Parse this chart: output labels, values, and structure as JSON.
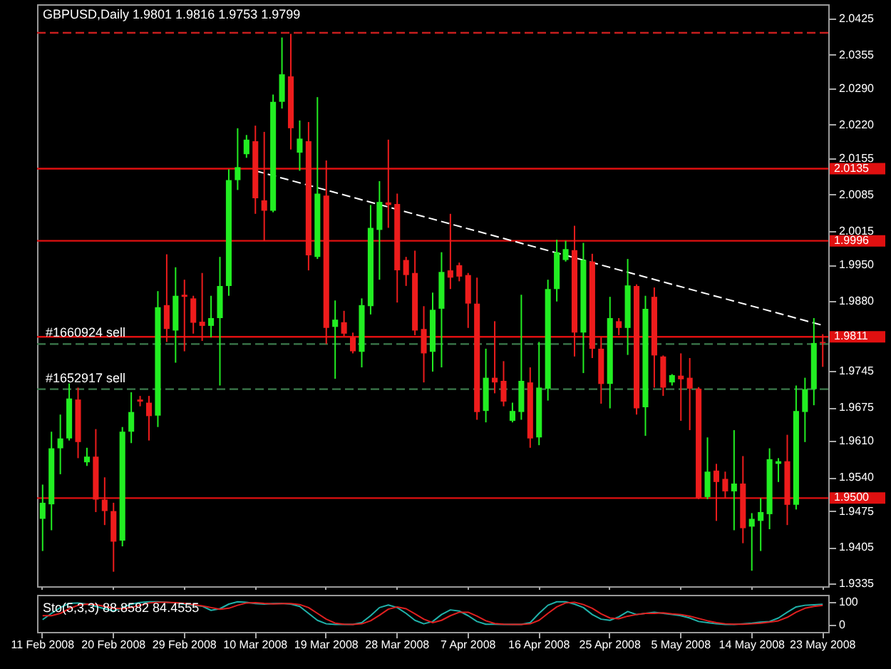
{
  "chart_data": [
    {
      "type": "candlestick",
      "title": "GBPUSD,Daily 1.9801 1.9816 1.9753 1.9799",
      "tick_labels": "y",
      "categories": [
        "11 Feb 2008",
        null,
        null,
        null,
        null,
        null,
        null,
        null,
        "20 Feb 2008",
        null,
        null,
        null,
        null,
        null,
        null,
        null,
        "29 Feb 2008",
        null,
        null,
        null,
        null,
        null,
        null,
        null,
        "10 Mar 2008",
        null,
        null,
        null,
        null,
        null,
        null,
        null,
        "19 Mar 2008",
        null,
        null,
        null,
        null,
        null,
        null,
        null,
        "28 Mar 2008",
        null,
        null,
        null,
        null,
        null,
        null,
        null,
        "7 Apr 2008",
        null,
        null,
        null,
        null,
        null,
        null,
        null,
        "16 Apr 2008",
        null,
        null,
        null,
        null,
        null,
        null,
        null,
        "25 Apr 2008",
        null,
        null,
        null,
        null,
        null,
        null,
        null,
        "5 May 2008",
        null,
        null,
        null,
        null,
        null,
        null,
        null,
        "14 May 2008",
        null,
        null,
        null,
        null,
        null,
        null,
        null,
        "23 May 2008"
      ],
      "ohlc": [
        [
          1.946,
          1.9526,
          1.9398,
          1.9491
        ],
        [
          1.9488,
          1.9628,
          1.9438,
          1.9596
        ],
        [
          1.9596,
          1.9661,
          1.9546,
          1.9615
        ],
        [
          1.9615,
          1.9721,
          1.9611,
          1.9692
        ],
        [
          1.969,
          1.9713,
          1.9577,
          1.9608
        ],
        [
          1.9569,
          1.9597,
          1.9562,
          1.958
        ],
        [
          1.958,
          1.9633,
          1.9473,
          1.9497
        ],
        [
          1.9497,
          1.954,
          1.9448,
          1.9475
        ],
        [
          1.9475,
          1.9491,
          1.9358,
          1.9416
        ],
        [
          1.9418,
          1.9637,
          1.9407,
          1.9628
        ],
        [
          1.9628,
          1.9704,
          1.9606,
          1.9666
        ],
        [
          1.969,
          1.9697,
          1.9677,
          1.9686
        ],
        [
          1.9684,
          1.9697,
          1.9611,
          1.9658
        ],
        [
          1.9659,
          1.9899,
          1.9637,
          1.9868
        ],
        [
          1.9872,
          1.997,
          1.9801,
          1.9826
        ],
        [
          1.9823,
          1.9945,
          1.9761,
          1.989
        ],
        [
          1.9892,
          1.9921,
          1.9783,
          1.9888
        ],
        [
          1.9885,
          1.989,
          1.9817,
          1.9838
        ],
        [
          1.984,
          1.9934,
          1.9803,
          1.9832
        ],
        [
          1.9832,
          1.989,
          1.981,
          1.9847
        ],
        [
          1.9847,
          1.9965,
          1.9717,
          1.9909
        ],
        [
          1.9909,
          2.0134,
          1.989,
          2.0113
        ],
        [
          2.0113,
          2.0213,
          2.0094,
          2.0138
        ],
        [
          2.0163,
          2.02,
          2.0156,
          2.0191
        ],
        [
          2.0188,
          2.0218,
          2.0048,
          2.0078
        ],
        [
          2.0074,
          2.0206,
          1.9996,
          2.0054
        ],
        [
          2.0054,
          2.0278,
          2.0051,
          2.0264
        ],
        [
          2.0264,
          2.0388,
          2.0251,
          2.0317
        ],
        [
          2.0313,
          2.0395,
          2.0172,
          2.0213
        ],
        [
          2.0166,
          2.0228,
          2.0131,
          2.0193
        ],
        [
          2.0188,
          2.0225,
          1.9939,
          1.9968
        ],
        [
          1.9965,
          2.0273,
          1.9961,
          2.0087
        ],
        [
          2.0083,
          2.0151,
          1.9797,
          1.9828
        ],
        [
          1.983,
          1.9881,
          1.973,
          1.9844
        ],
        [
          1.9839,
          1.9861,
          1.9812,
          1.9817
        ],
        [
          1.981,
          1.9819,
          1.9779,
          1.9783
        ],
        [
          1.9782,
          1.9885,
          1.9752,
          1.9872
        ],
        [
          1.987,
          2.0065,
          1.9854,
          2.0021
        ],
        [
          2.0017,
          2.0111,
          1.9921,
          2.0071
        ],
        [
          2.007,
          2.0191,
          2.0021,
          2.0065
        ],
        [
          2.0067,
          2.0087,
          1.9877,
          1.9939
        ],
        [
          1.9959,
          1.9965,
          1.9909,
          1.993
        ],
        [
          1.9934,
          1.9977,
          1.9814,
          1.9823
        ],
        [
          1.9826,
          1.987,
          1.9723,
          1.9779
        ],
        [
          1.9782,
          1.9896,
          1.9744,
          1.9863
        ],
        [
          1.9865,
          1.9974,
          1.9752,
          1.9936
        ],
        [
          1.9939,
          2.0048,
          1.9903,
          1.9925
        ],
        [
          1.9949,
          1.9954,
          1.9918,
          1.9927
        ],
        [
          1.993,
          1.9934,
          1.9828,
          1.9875
        ],
        [
          1.9875,
          1.9925,
          1.9651,
          1.9666
        ],
        [
          1.9668,
          1.9788,
          1.9646,
          1.9732
        ],
        [
          1.9732,
          1.9841,
          1.9702,
          1.9723
        ],
        [
          1.9726,
          1.9764,
          1.9677,
          1.9686
        ],
        [
          1.9649,
          1.9684,
          1.9646,
          1.9668
        ],
        [
          1.9666,
          1.9892,
          1.9651,
          1.9726
        ],
        [
          1.9723,
          1.9752,
          1.9597,
          1.9615
        ],
        [
          1.9617,
          1.9801,
          1.9602,
          1.9713
        ],
        [
          1.9711,
          1.9921,
          1.9688,
          1.9903
        ],
        [
          1.9903,
          1.9998,
          1.9879,
          1.9974
        ],
        [
          1.9959,
          1.9996,
          1.9956,
          1.998
        ],
        [
          1.9978,
          2.0025,
          1.9773,
          1.9819
        ],
        [
          1.9819,
          1.9992,
          1.9741,
          1.9959
        ],
        [
          1.9956,
          1.9971,
          1.977,
          1.9788
        ],
        [
          1.9788,
          1.981,
          1.9682,
          1.972
        ],
        [
          1.972,
          1.9888,
          1.9673,
          1.9847
        ],
        [
          1.9841,
          1.9847,
          1.9814,
          1.9828
        ],
        [
          1.9828,
          1.9961,
          1.9776,
          1.991
        ],
        [
          1.9909,
          1.9912,
          1.9661,
          1.9673
        ],
        [
          1.9675,
          1.989,
          1.962,
          1.9865
        ],
        [
          1.9888,
          1.9906,
          1.9713,
          1.9775
        ],
        [
          1.9773,
          1.9775,
          1.9697,
          1.9713
        ],
        [
          1.9723,
          1.9739,
          1.9717,
          1.9737
        ],
        [
          1.9736,
          1.9779,
          1.9649,
          1.9729
        ],
        [
          1.9732,
          1.977,
          1.9631,
          1.9711
        ],
        [
          1.9711,
          1.9714,
          1.9498,
          1.95
        ],
        [
          1.9502,
          1.9617,
          1.9498,
          1.9551
        ],
        [
          1.9553,
          1.9566,
          1.9456,
          1.9531
        ],
        [
          1.9537,
          1.9551,
          1.95,
          1.9513
        ],
        [
          1.9513,
          1.9631,
          1.9438,
          1.9528
        ],
        [
          1.9528,
          1.9581,
          1.9413,
          1.9442
        ],
        [
          1.9445,
          1.9471,
          1.936,
          1.946
        ],
        [
          1.9456,
          1.95,
          1.9398,
          1.9473
        ],
        [
          1.9469,
          1.9596,
          1.944,
          1.9575
        ],
        [
          1.9566,
          1.9577,
          1.9531,
          1.9571
        ],
        [
          1.9571,
          1.9622,
          1.9448,
          1.9487
        ],
        [
          1.9487,
          1.9717,
          1.9478,
          1.9668
        ],
        [
          1.9666,
          1.9732,
          1.9608,
          1.971
        ],
        [
          1.971,
          1.9847,
          1.9679,
          1.9799
        ],
        [
          1.9801,
          1.9816,
          1.9753,
          1.9799
        ]
      ],
      "colors": [
        "#22ee22",
        "#22ee22",
        "#22ee22",
        "#22ee22",
        "#ee1c1c",
        "#22ee22",
        "#ee1c1c",
        "#ee1c1c",
        "#ee1c1c",
        "#22ee22",
        "#22ee22",
        "#ee1c1c",
        "#ee1c1c",
        "#22ee22",
        "#ee1c1c",
        "#22ee22",
        "#ee1c1c",
        "#ee1c1c",
        "#ee1c1c",
        "#22ee22",
        "#22ee22",
        "#22ee22",
        "#22ee22",
        "#22ee22",
        "#ee1c1c",
        "#ee1c1c",
        "#22ee22",
        "#22ee22",
        "#ee1c1c",
        "#22ee22",
        "#ee1c1c",
        "#22ee22",
        "#ee1c1c",
        "#22ee22",
        "#ee1c1c",
        "#ee1c1c",
        "#22ee22",
        "#22ee22",
        "#22ee22",
        "#ee1c1c",
        "#ee1c1c",
        "#ee1c1c",
        "#ee1c1c",
        "#ee1c1c",
        "#22ee22",
        "#22ee22",
        "#ee1c1c",
        "#ee1c1c",
        "#ee1c1c",
        "#ee1c1c",
        "#22ee22",
        "#ee1c1c",
        "#ee1c1c",
        "#22ee22",
        "#22ee22",
        "#ee1c1c",
        "#22ee22",
        "#22ee22",
        "#22ee22",
        "#22ee22",
        "#ee1c1c",
        "#22ee22",
        "#ee1c1c",
        "#ee1c1c",
        "#22ee22",
        "#ee1c1c",
        "#22ee22",
        "#ee1c1c",
        "#22ee22",
        "#ee1c1c",
        "#ee1c1c",
        "#22ee22",
        "#ee1c1c",
        "#ee1c1c",
        "#ee1c1c",
        "#22ee22",
        "#ee1c1c",
        "#ee1c1c",
        "#22ee22",
        "#ee1c1c",
        "#22ee22",
        "#22ee22",
        "#22ee22",
        "#22ee22",
        "#ee1c1c",
        "#22ee22",
        "#22ee22",
        "#22ee22",
        "#ee1c1c"
      ],
      "series": [
        {
          "type": "line",
          "color": "#ffffff",
          "line_style": "dashed",
          "x": [
            "10 Mar 2008",
            "23 May 2008"
          ],
          "values": [
            2.0131,
            1.9833
          ]
        }
      ],
      "ylim": [
        1.933,
        2.0452
      ],
      "yticks": [
        1.9335,
        1.9405,
        1.9475,
        {
          "value": 1.954,
          "label": "1.9540"
        },
        {
          "value": 1.961,
          "label": "1.9610"
        },
        1.9675,
        1.9745,
        {
          "value": 1.988,
          "label": "1.9880"
        },
        {
          "value": 1.995,
          "label": "1.9950"
        },
        2.0015,
        2.0085,
        2.0155,
        {
          "value": 2.022,
          "label": "2.0220"
        },
        {
          "value": 2.029,
          "label": "2.0290"
        },
        2.0355,
        2.0425
      ],
      "ref_lines": [
        {
          "axis": "y",
          "value": 2.0397,
          "color": "#c81e1e",
          "line_style": "dashed"
        },
        {
          "axis": "y",
          "value": 2.0135,
          "label": "2.0135",
          "color": "#e01010"
        },
        {
          "axis": "y",
          "value": 1.9996,
          "label": "1.9996",
          "color": "#e01010"
        },
        {
          "axis": "y",
          "value": 1.9811,
          "label": "1.9811",
          "color": "#e01010"
        },
        {
          "axis": "y",
          "value": 1.9797,
          "label": "#1660924 sell",
          "color": "#3c7a4c",
          "line_style": "dashed"
        },
        {
          "axis": "y",
          "value": 1.971,
          "label": "#1652917 sell",
          "color": "#3c7a4c",
          "line_style": "dashed"
        },
        {
          "axis": "y",
          "value": 1.95,
          "label": "1.9500",
          "color": "#e01010"
        }
      ]
    },
    {
      "type": "line",
      "title": "Sto(5,3,3) 88.8582 84.4555",
      "categories": [
        "11 Feb 2008",
        null,
        null,
        null,
        null,
        null,
        null,
        null,
        "20 Feb 2008",
        null,
        null,
        null,
        null,
        null,
        null,
        null,
        "29 Feb 2008",
        null,
        null,
        null,
        null,
        null,
        null,
        null,
        "10 Mar 2008",
        null,
        null,
        null,
        null,
        null,
        null,
        null,
        "19 Mar 2008",
        null,
        null,
        null,
        null,
        null,
        null,
        null,
        "28 Mar 2008",
        null,
        null,
        null,
        null,
        null,
        null,
        null,
        "7 Apr 2008",
        null,
        null,
        null,
        null,
        null,
        null,
        null,
        "16 Apr 2008",
        null,
        null,
        null,
        null,
        null,
        null,
        null,
        "25 Apr 2008",
        null,
        null,
        null,
        null,
        null,
        null,
        null,
        "5 May 2008",
        null,
        null,
        null,
        null,
        null,
        null,
        null,
        "14 May 2008",
        null,
        null,
        null,
        null,
        null,
        null,
        null,
        "23 May 2008"
      ],
      "series": [
        {
          "color": "#20b2aa",
          "values": [
            23,
            50,
            75,
            93,
            95,
            90,
            80,
            70,
            60,
            75,
            90,
            97,
            100,
            100,
            98,
            95,
            90,
            85,
            81,
            63,
            70,
            90,
            100,
            98,
            92,
            90,
            92,
            93,
            90,
            80,
            50,
            20,
            5,
            2,
            2,
            2,
            10,
            40,
            75,
            86,
            75,
            50,
            20,
            5,
            15,
            45,
            65,
            60,
            40,
            15,
            3,
            3,
            2,
            2,
            2,
            10,
            50,
            85,
            100,
            100,
            90,
            75,
            45,
            25,
            20,
            35,
            58,
            45,
            50,
            55,
            50,
            45,
            40,
            30,
            15,
            10,
            5,
            2,
            2,
            5,
            8,
            12,
            15,
            30,
            55,
            78,
            85,
            87,
            88.8582
          ]
        },
        {
          "color": "#e02020",
          "values": [
            40,
            40,
            50,
            70,
            85,
            90,
            88,
            80,
            72,
            70,
            75,
            85,
            95,
            98,
            98,
            96,
            93,
            88,
            82,
            75,
            68,
            72,
            85,
            95,
            96,
            93,
            91,
            92,
            92,
            88,
            75,
            50,
            25,
            8,
            3,
            2,
            5,
            18,
            42,
            68,
            78,
            70,
            48,
            25,
            10,
            20,
            40,
            55,
            55,
            38,
            18,
            6,
            3,
            2,
            2,
            5,
            20,
            50,
            78,
            95,
            98,
            88,
            72,
            48,
            30,
            27,
            38,
            45,
            50,
            50,
            52,
            48,
            45,
            38,
            28,
            18,
            10,
            5,
            3,
            3,
            5,
            8,
            12,
            18,
            33,
            55,
            72,
            80,
            84.4555
          ]
        }
      ],
      "ylim": [
        -30,
        130
      ],
      "yticks": [
        0,
        100
      ]
    }
  ]
}
